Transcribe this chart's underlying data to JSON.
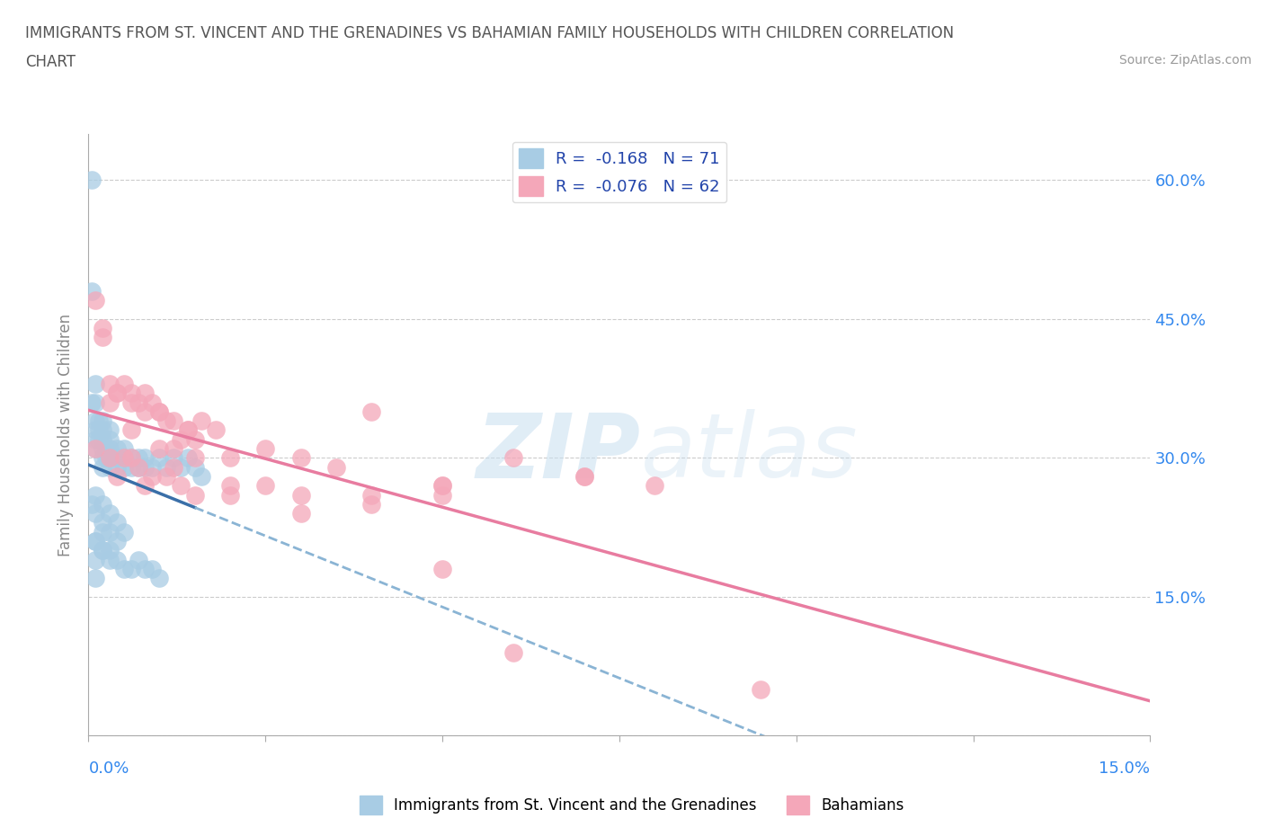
{
  "title_line1": "IMMIGRANTS FROM ST. VINCENT AND THE GRENADINES VS BAHAMIAN FAMILY HOUSEHOLDS WITH CHILDREN CORRELATION",
  "title_line2": "CHART",
  "source_text": "Source: ZipAtlas.com",
  "ylabel": "Family Households with Children",
  "legend_label1": "R =  -0.168   N = 71",
  "legend_label2": "R =  -0.076   N = 62",
  "color_blue": "#a8cce4",
  "color_pink": "#f4a7b9",
  "trend_color_blue_solid": "#3a6fa8",
  "trend_color_blue_dash": "#8ab4d4",
  "trend_color_pink": "#e87ca0",
  "watermark_zip": "ZIP",
  "watermark_atlas": "atlas",
  "xlim": [
    0.0,
    0.15
  ],
  "ylim": [
    0.0,
    0.65
  ],
  "x_ticks": [
    0.0,
    0.025,
    0.05,
    0.075,
    0.1,
    0.125,
    0.15
  ],
  "y_ticks": [
    0.0,
    0.15,
    0.3,
    0.45,
    0.6
  ],
  "blue_x": [
    0.0005,
    0.0005,
    0.0005,
    0.001,
    0.001,
    0.001,
    0.001,
    0.001,
    0.001,
    0.0015,
    0.0015,
    0.0015,
    0.002,
    0.002,
    0.002,
    0.002,
    0.002,
    0.002,
    0.0025,
    0.0025,
    0.003,
    0.003,
    0.003,
    0.003,
    0.003,
    0.004,
    0.004,
    0.004,
    0.005,
    0.005,
    0.005,
    0.006,
    0.006,
    0.007,
    0.007,
    0.008,
    0.008,
    0.009,
    0.01,
    0.011,
    0.012,
    0.013,
    0.014,
    0.015,
    0.016,
    0.0005,
    0.001,
    0.001,
    0.002,
    0.002,
    0.003,
    0.003,
    0.004,
    0.004,
    0.005,
    0.001,
    0.002,
    0.003,
    0.001,
    0.002,
    0.001,
    0.002,
    0.003,
    0.004,
    0.005,
    0.006,
    0.007,
    0.008,
    0.009,
    0.01,
    0.001
  ],
  "blue_y": [
    0.6,
    0.48,
    0.36,
    0.38,
    0.36,
    0.34,
    0.33,
    0.32,
    0.31,
    0.34,
    0.33,
    0.32,
    0.34,
    0.33,
    0.32,
    0.31,
    0.3,
    0.29,
    0.31,
    0.3,
    0.33,
    0.32,
    0.31,
    0.3,
    0.29,
    0.31,
    0.3,
    0.29,
    0.31,
    0.3,
    0.29,
    0.3,
    0.29,
    0.3,
    0.29,
    0.3,
    0.29,
    0.29,
    0.3,
    0.29,
    0.3,
    0.29,
    0.3,
    0.29,
    0.28,
    0.25,
    0.26,
    0.24,
    0.25,
    0.23,
    0.24,
    0.22,
    0.23,
    0.21,
    0.22,
    0.21,
    0.22,
    0.2,
    0.21,
    0.2,
    0.19,
    0.2,
    0.19,
    0.19,
    0.18,
    0.18,
    0.19,
    0.18,
    0.18,
    0.17,
    0.17
  ],
  "pink_x": [
    0.001,
    0.002,
    0.003,
    0.004,
    0.005,
    0.006,
    0.007,
    0.008,
    0.009,
    0.01,
    0.011,
    0.012,
    0.013,
    0.014,
    0.015,
    0.002,
    0.004,
    0.006,
    0.008,
    0.01,
    0.012,
    0.014,
    0.016,
    0.018,
    0.02,
    0.025,
    0.03,
    0.035,
    0.04,
    0.05,
    0.06,
    0.07,
    0.001,
    0.003,
    0.005,
    0.007,
    0.009,
    0.011,
    0.013,
    0.003,
    0.006,
    0.01,
    0.015,
    0.02,
    0.03,
    0.04,
    0.05,
    0.006,
    0.012,
    0.02,
    0.03,
    0.05,
    0.07,
    0.004,
    0.008,
    0.015,
    0.025,
    0.04,
    0.06,
    0.08,
    0.095,
    0.05
  ],
  "pink_y": [
    0.47,
    0.43,
    0.38,
    0.37,
    0.38,
    0.37,
    0.36,
    0.35,
    0.36,
    0.35,
    0.34,
    0.31,
    0.32,
    0.33,
    0.32,
    0.44,
    0.37,
    0.36,
    0.37,
    0.35,
    0.34,
    0.33,
    0.34,
    0.33,
    0.3,
    0.31,
    0.3,
    0.29,
    0.35,
    0.27,
    0.3,
    0.28,
    0.31,
    0.3,
    0.3,
    0.29,
    0.28,
    0.28,
    0.27,
    0.36,
    0.33,
    0.31,
    0.3,
    0.27,
    0.26,
    0.26,
    0.27,
    0.3,
    0.29,
    0.26,
    0.24,
    0.18,
    0.28,
    0.28,
    0.27,
    0.26,
    0.27,
    0.25,
    0.09,
    0.27,
    0.05,
    0.26
  ]
}
